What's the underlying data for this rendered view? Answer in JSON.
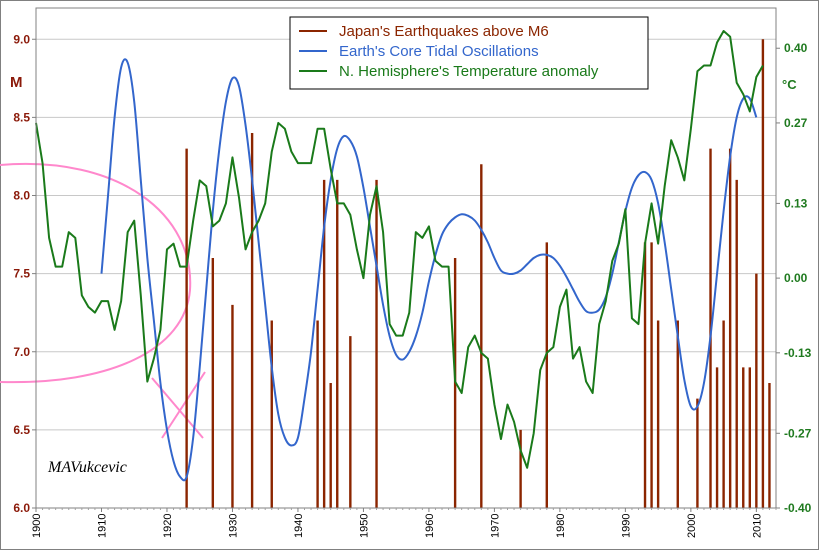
{
  "chart_data": {
    "type": "line",
    "title": "",
    "xlabel": "",
    "ylabel_left": "M",
    "ylabel_right": "°C",
    "xlim": [
      1900,
      2013
    ],
    "ylim_left": [
      6.0,
      9.2
    ],
    "ylim_right": [
      -0.4,
      0.47
    ],
    "x_ticks": [
      "1900",
      "1910",
      "1920",
      "1930",
      "1940",
      "1950",
      "1960",
      "1970",
      "1980",
      "1990",
      "2000",
      "2010"
    ],
    "y_ticks_left": [
      "6.0",
      "6.5",
      "7.0",
      "7.5",
      "8.0",
      "8.5",
      "9.0"
    ],
    "y_ticks_right": [
      "-0.40",
      "-0.27",
      "-0.13",
      "0.00",
      "0.13",
      "0.27",
      "0.40"
    ],
    "grid": "horizontal",
    "legend_position": "top-center",
    "colors": {
      "earthquakes": "#8b2500",
      "tidal": "#3366cc",
      "temperature": "#1a7a1a",
      "annotation": "#ff88cc"
    },
    "annotation_text": "MAVukcevic",
    "series": [
      {
        "name": "Japan's Earthquakes above M6",
        "kind": "bar",
        "axis": "left",
        "x": [
          1923,
          1927,
          1930,
          1933,
          1936,
          1943,
          1944,
          1945,
          1946,
          1948,
          1952,
          1964,
          1968,
          1974,
          1978,
          1993,
          1994,
          1995,
          1998,
          2001,
          2003,
          2004,
          2005,
          2006,
          2007,
          2008,
          2009,
          2010,
          2011,
          2012
        ],
        "values": [
          8.3,
          7.6,
          7.3,
          8.4,
          7.2,
          7.2,
          8.1,
          6.8,
          8.1,
          7.1,
          8.1,
          7.6,
          8.2,
          6.5,
          7.7,
          7.7,
          7.7,
          7.2,
          7.2,
          6.7,
          8.3,
          6.9,
          7.2,
          8.3,
          8.1,
          6.9,
          6.9,
          7.5,
          9.0,
          6.8
        ]
      },
      {
        "name": "Earth's Core Tidal Oscillations",
        "kind": "line",
        "axis": "left",
        "x": [
          1910,
          1911,
          1912,
          1913,
          1914,
          1915,
          1916,
          1917,
          1918,
          1919,
          1920,
          1921,
          1922,
          1923,
          1924,
          1925,
          1926,
          1927,
          1928,
          1929,
          1930,
          1931,
          1932,
          1933,
          1934,
          1935,
          1936,
          1937,
          1938,
          1939,
          1940,
          1941,
          1942,
          1943,
          1944,
          1945,
          1946,
          1947,
          1948,
          1949,
          1950,
          1951,
          1952,
          1953,
          1954,
          1955,
          1956,
          1957,
          1958,
          1959,
          1960,
          1961,
          1962,
          1963,
          1964,
          1965,
          1966,
          1967,
          1968,
          1969,
          1970,
          1971,
          1972,
          1973,
          1974,
          1975,
          1976,
          1977,
          1978,
          1979,
          1980,
          1981,
          1982,
          1983,
          1984,
          1985,
          1986,
          1987,
          1988,
          1989,
          1990,
          1991,
          1992,
          1993,
          1994,
          1995,
          1996,
          1997,
          1998,
          1999,
          2000,
          2001,
          2002,
          2003,
          2004,
          2005,
          2006,
          2007,
          2008,
          2009,
          2010
        ],
        "values": [
          7.5,
          8.0,
          8.5,
          8.82,
          8.85,
          8.6,
          8.1,
          7.6,
          7.2,
          6.8,
          6.5,
          6.3,
          6.2,
          6.2,
          6.45,
          6.9,
          7.4,
          7.9,
          8.3,
          8.6,
          8.75,
          8.7,
          8.45,
          8.1,
          7.7,
          7.3,
          6.9,
          6.6,
          6.45,
          6.4,
          6.45,
          6.7,
          7.0,
          7.4,
          7.8,
          8.1,
          8.3,
          8.38,
          8.35,
          8.25,
          8.05,
          7.8,
          7.55,
          7.3,
          7.1,
          6.98,
          6.95,
          7.0,
          7.1,
          7.25,
          7.45,
          7.62,
          7.75,
          7.82,
          7.86,
          7.88,
          7.87,
          7.84,
          7.78,
          7.7,
          7.6,
          7.52,
          7.5,
          7.5,
          7.52,
          7.56,
          7.6,
          7.62,
          7.62,
          7.6,
          7.55,
          7.48,
          7.4,
          7.32,
          7.26,
          7.25,
          7.27,
          7.35,
          7.5,
          7.7,
          7.9,
          8.05,
          8.13,
          8.15,
          8.1,
          7.95,
          7.7,
          7.4,
          7.1,
          6.82,
          6.65,
          6.65,
          6.8,
          7.1,
          7.5,
          7.9,
          8.25,
          8.5,
          8.62,
          8.62,
          8.5
        ]
      },
      {
        "name": "N. Hemisphere's Temperature anomaly",
        "kind": "line",
        "axis": "right",
        "x": [
          1900,
          1901,
          1902,
          1903,
          1904,
          1905,
          1906,
          1907,
          1908,
          1909,
          1910,
          1911,
          1912,
          1913,
          1914,
          1915,
          1916,
          1917,
          1918,
          1919,
          1920,
          1921,
          1922,
          1923,
          1924,
          1925,
          1926,
          1927,
          1928,
          1929,
          1930,
          1931,
          1932,
          1933,
          1934,
          1935,
          1936,
          1937,
          1938,
          1939,
          1940,
          1941,
          1942,
          1943,
          1944,
          1945,
          1946,
          1947,
          1948,
          1949,
          1950,
          1951,
          1952,
          1953,
          1954,
          1955,
          1956,
          1957,
          1958,
          1959,
          1960,
          1961,
          1962,
          1963,
          1964,
          1965,
          1966,
          1967,
          1968,
          1969,
          1970,
          1971,
          1972,
          1973,
          1974,
          1975,
          1976,
          1977,
          1978,
          1979,
          1980,
          1981,
          1982,
          1983,
          1984,
          1985,
          1986,
          1987,
          1988,
          1989,
          1990,
          1991,
          1992,
          1993,
          1994,
          1995,
          1996,
          1997,
          1998,
          1999,
          2000,
          2001,
          2002,
          2003,
          2004,
          2005,
          2006,
          2007,
          2008,
          2009,
          2010,
          2011
        ],
        "values": [
          0.27,
          0.2,
          0.07,
          0.02,
          0.02,
          0.08,
          0.07,
          -0.03,
          -0.05,
          -0.06,
          -0.04,
          -0.04,
          -0.09,
          -0.04,
          0.08,
          0.1,
          -0.03,
          -0.18,
          -0.14,
          -0.09,
          0.05,
          0.06,
          0.02,
          0.02,
          0.1,
          0.17,
          0.16,
          0.09,
          0.1,
          0.13,
          0.21,
          0.14,
          0.05,
          0.08,
          0.1,
          0.13,
          0.22,
          0.27,
          0.26,
          0.22,
          0.2,
          0.2,
          0.2,
          0.26,
          0.26,
          0.19,
          0.13,
          0.13,
          0.11,
          0.05,
          0.0,
          0.11,
          0.16,
          0.08,
          -0.08,
          -0.1,
          -0.1,
          -0.06,
          0.08,
          0.07,
          0.09,
          0.03,
          0.02,
          0.02,
          -0.18,
          -0.2,
          -0.12,
          -0.1,
          -0.13,
          -0.14,
          -0.22,
          -0.28,
          -0.22,
          -0.25,
          -0.3,
          -0.33,
          -0.27,
          -0.16,
          -0.13,
          -0.12,
          -0.05,
          -0.02,
          -0.14,
          -0.12,
          -0.18,
          -0.2,
          -0.08,
          -0.04,
          0.03,
          0.06,
          0.12,
          -0.07,
          -0.08,
          0.06,
          0.13,
          0.06,
          0.16,
          0.24,
          0.21,
          0.17,
          0.26,
          0.36,
          0.37,
          0.37,
          0.41,
          0.43,
          0.42,
          0.34,
          0.32,
          0.29,
          0.35,
          0.37
        ]
      }
    ],
    "legend": [
      "Japan's Earthquakes above M6",
      "Earth's Core Tidal Oscillations",
      "N. Hemisphere's Temperature anomaly"
    ]
  }
}
